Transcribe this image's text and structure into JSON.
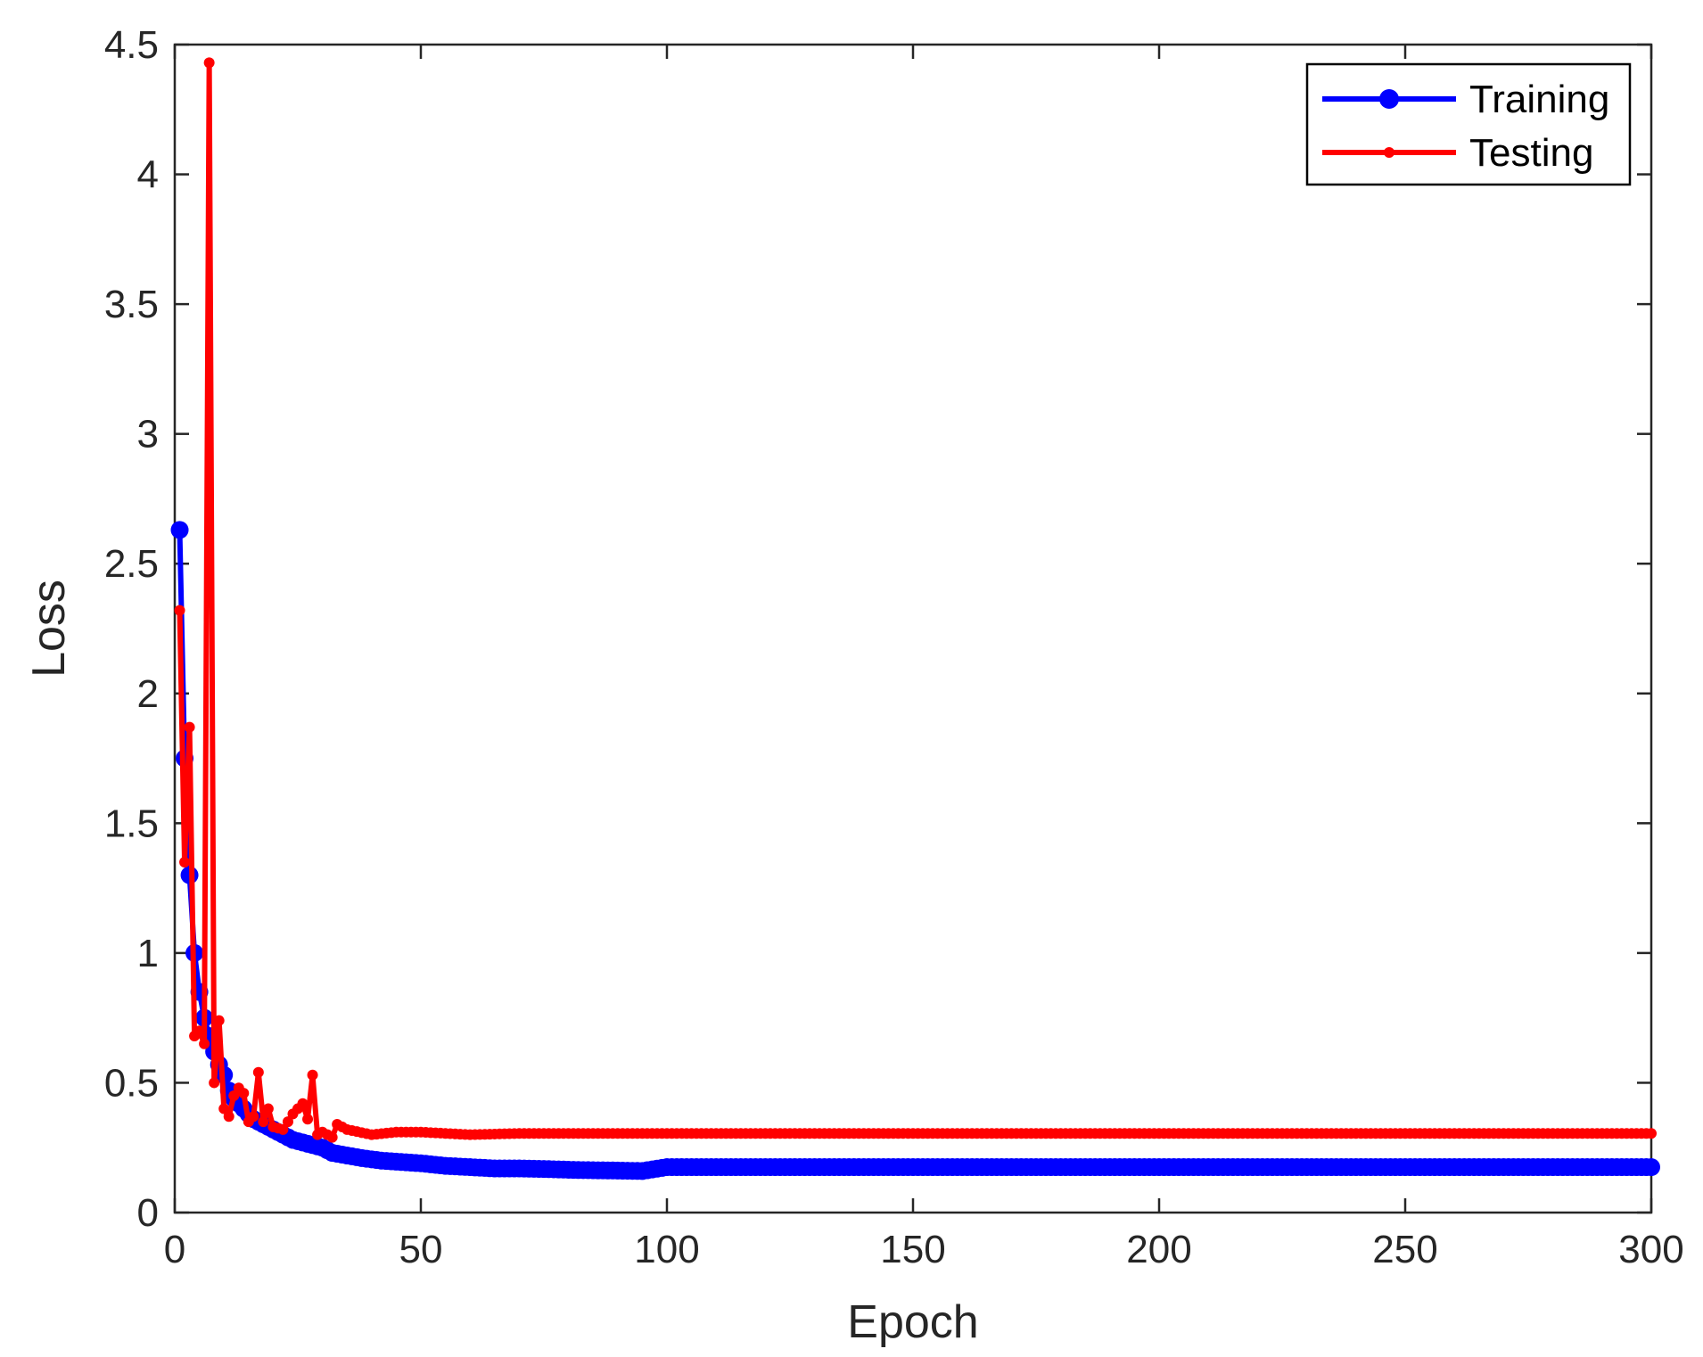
{
  "chart_data": {
    "type": "line",
    "title": "",
    "xlabel": "Epoch",
    "ylabel": "Loss",
    "xlim": [
      0,
      300
    ],
    "ylim": [
      0,
      4.5
    ],
    "xticks": [
      "0",
      "50",
      "100",
      "150",
      "200",
      "250",
      "300"
    ],
    "yticks": [
      "0",
      "0.5",
      "1",
      "1.5",
      "2",
      "2.5",
      "3",
      "3.5",
      "4",
      "4.5"
    ],
    "grid": false,
    "legend_location": "top-right",
    "series": [
      {
        "name": "Training",
        "color": "#0000ff",
        "marker": "large-dot",
        "points": [
          [
            1,
            2.63
          ],
          [
            2,
            1.75
          ],
          [
            3,
            1.3
          ],
          [
            4,
            1.0
          ],
          [
            5,
            0.85
          ],
          [
            6,
            0.75
          ],
          [
            7,
            0.68
          ],
          [
            8,
            0.62
          ],
          [
            9,
            0.57
          ],
          [
            10,
            0.53
          ],
          [
            11,
            0.47
          ],
          [
            12,
            0.44
          ],
          [
            13,
            0.42
          ],
          [
            14,
            0.4
          ],
          [
            15,
            0.38
          ],
          [
            16,
            0.36
          ],
          [
            17,
            0.35
          ],
          [
            18,
            0.34
          ],
          [
            19,
            0.33
          ],
          [
            20,
            0.32
          ],
          [
            22,
            0.3
          ],
          [
            24,
            0.28
          ],
          [
            26,
            0.27
          ],
          [
            28,
            0.26
          ],
          [
            30,
            0.25
          ],
          [
            32,
            0.23
          ],
          [
            35,
            0.22
          ],
          [
            38,
            0.21
          ],
          [
            42,
            0.2
          ],
          [
            46,
            0.195
          ],
          [
            50,
            0.19
          ],
          [
            55,
            0.18
          ],
          [
            60,
            0.175
          ],
          [
            65,
            0.17
          ],
          [
            70,
            0.17
          ],
          [
            75,
            0.168
          ],
          [
            80,
            0.165
          ],
          [
            85,
            0.163
          ],
          [
            90,
            0.162
          ],
          [
            95,
            0.16
          ],
          [
            100,
            0.175
          ],
          [
            120,
            0.175
          ],
          [
            150,
            0.175
          ],
          [
            200,
            0.175
          ],
          [
            250,
            0.175
          ],
          [
            300,
            0.175
          ]
        ]
      },
      {
        "name": "Testing",
        "color": "#ff0000",
        "marker": "small-dot",
        "points": [
          [
            1,
            2.32
          ],
          [
            2,
            1.35
          ],
          [
            3,
            1.87
          ],
          [
            4,
            0.68
          ],
          [
            5,
            0.7
          ],
          [
            6,
            0.65
          ],
          [
            7,
            4.43
          ],
          [
            8,
            0.5
          ],
          [
            9,
            0.74
          ],
          [
            10,
            0.4
          ],
          [
            11,
            0.37
          ],
          [
            12,
            0.45
          ],
          [
            13,
            0.48
          ],
          [
            14,
            0.46
          ],
          [
            15,
            0.35
          ],
          [
            16,
            0.37
          ],
          [
            17,
            0.54
          ],
          [
            18,
            0.35
          ],
          [
            19,
            0.4
          ],
          [
            20,
            0.33
          ],
          [
            22,
            0.32
          ],
          [
            24,
            0.38
          ],
          [
            26,
            0.42
          ],
          [
            27,
            0.36
          ],
          [
            28,
            0.53
          ],
          [
            29,
            0.3
          ],
          [
            30,
            0.31
          ],
          [
            32,
            0.29
          ],
          [
            33,
            0.34
          ],
          [
            35,
            0.32
          ],
          [
            40,
            0.3
          ],
          [
            45,
            0.31
          ],
          [
            50,
            0.31
          ],
          [
            55,
            0.305
          ],
          [
            60,
            0.3
          ],
          [
            70,
            0.305
          ],
          [
            80,
            0.305
          ],
          [
            100,
            0.305
          ],
          [
            150,
            0.305
          ],
          [
            200,
            0.305
          ],
          [
            250,
            0.305
          ],
          [
            300,
            0.305
          ]
        ]
      }
    ]
  }
}
